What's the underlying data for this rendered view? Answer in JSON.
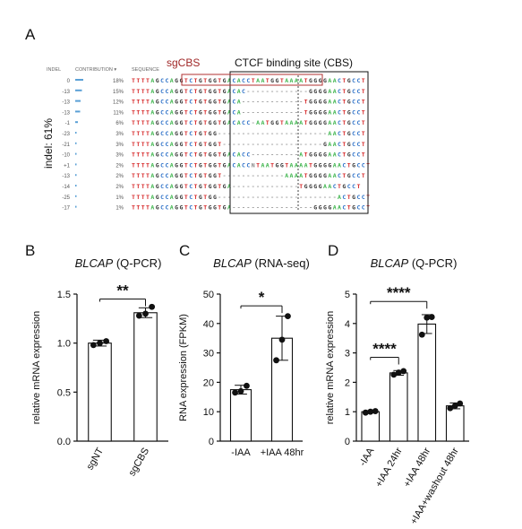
{
  "panel_a": {
    "letter": "A",
    "sgcbs_label": "sgCBS",
    "cbs_label": "CTCF binding site (CBS)",
    "header": {
      "indel": "INDEL",
      "contribution": "CONTRIBUTION ▾",
      "sequence": "SEQUENCE"
    },
    "indel_summary": "indel: 61%",
    "rows": [
      {
        "indel": "0",
        "contribution": "18%",
        "sequence": "TTTTAGCCAGGTCTGTGGTGACACCTAATGGTAAAATGGGGAACTGCCT"
      },
      {
        "indel": "-13",
        "contribution": "15%",
        "sequence": "TTTTAGCCAGGTCTGTGGTGACAC-------------GGGGAACTGCCT"
      },
      {
        "indel": "-13",
        "contribution": "12%",
        "sequence": "TTTTAGCCAGGTCTGTGGTGACA-------------TGGGGAACTGCCT"
      },
      {
        "indel": "-13",
        "contribution": "11%",
        "sequence": "TTTTAGCCAGGTCTGTGGTGACA-------------TGGGGAACTGCCT"
      },
      {
        "indel": "-1",
        "contribution": "6%",
        "sequence": "TTTTAGCCAGGTCTGTGGTGACACC-AATGGTAAAATGGGGAACTGCCT"
      },
      {
        "indel": "-23",
        "contribution": "3%",
        "sequence": "TTTTAGCCAGGTCTGTGG-----------------------AACTGCCT"
      },
      {
        "indel": "-21",
        "contribution": "3%",
        "sequence": "TTTTAGCCAGGTCTGTGGT---------------------GAACTGCCT"
      },
      {
        "indel": "-10",
        "contribution": "3%",
        "sequence": "TTTTAGCCAGGTCTGTGGTGACACC----------ATGGGGAACTGCCT"
      },
      {
        "indel": "+1",
        "contribution": "2%",
        "sequence": "TTTTAGCCAGGTCTGTGGTGACACCNTAATGGTAAAATGGGGAACTGCCT"
      },
      {
        "indel": "-13",
        "contribution": "2%",
        "sequence": "TTTTAGCCAGGTCTGTGGT-------------AAAATGGGGAACTGCCT"
      },
      {
        "indel": "-14",
        "contribution": "2%",
        "sequence": "TTTTAGCCAGGTCTGTGGTGA--------------TGGGGAACTGCCT"
      },
      {
        "indel": "-25",
        "contribution": "1%",
        "sequence": "TTTTAGCCAGGTCTGTGG-------------------------ACTGCCT"
      },
      {
        "indel": "-17",
        "contribution": "1%",
        "sequence": "TTTTAGCCAGGTCTGTGGTGA-----------------GGGGAACTGCCT"
      }
    ],
    "colors": {
      "A": "#3cb44b",
      "T": "#d62728",
      "G": "#333333",
      "C": "#2a6fc7",
      "N": "#888888",
      "dash": "#999999",
      "bar": "#5aa0d6",
      "box": "#111111",
      "sgbox": "#b03030"
    }
  },
  "panel_b": {
    "letter": "B",
    "title_gene": "BLCAP",
    "title_rest": " (Q-PCR)",
    "significance": "**"
  },
  "panel_c": {
    "letter": "C",
    "title_gene": "BLCAP",
    "title_rest": " (RNA-seq)",
    "significance": "*"
  },
  "panel_d": {
    "letter": "D",
    "title_gene": "BLCAP",
    "title_rest": " (Q-PCR)",
    "significance": [
      "****",
      "****"
    ]
  },
  "chart_data": [
    {
      "type": "bar",
      "panel": "B",
      "ylabel": "relative mRNA expression",
      "ylim": [
        0,
        1.5
      ],
      "yticks": [
        "0.0",
        "0.5",
        "1.0",
        "1.5"
      ],
      "categories": [
        "sgNT",
        "sgCBS"
      ],
      "values": [
        1.0,
        1.31
      ],
      "errors": [
        0.03,
        0.05
      ],
      "points": [
        [
          0.98,
          1.0,
          1.02
        ],
        [
          1.28,
          1.3,
          1.37
        ]
      ],
      "significance": {
        "pair": [
          0,
          1
        ],
        "label": "**"
      }
    },
    {
      "type": "bar",
      "panel": "C",
      "ylabel": "RNA expression (FPKM)",
      "ylim": [
        0,
        50
      ],
      "yticks": [
        "0",
        "10",
        "20",
        "30",
        "40",
        "50"
      ],
      "categories": [
        "-IAA",
        "+IAA 48hr"
      ],
      "values": [
        17.5,
        35
      ],
      "errors": [
        1.5,
        7.5
      ],
      "points": [
        [
          16.5,
          17.0,
          18.8
        ],
        [
          27.5,
          34.5,
          42.5
        ]
      ],
      "significance": {
        "pair": [
          0,
          1
        ],
        "label": "*"
      }
    },
    {
      "type": "bar",
      "panel": "D",
      "ylabel": "relative mRNA expression",
      "ylim": [
        0,
        5
      ],
      "yticks": [
        "0",
        "1",
        "2",
        "3",
        "4",
        "5"
      ],
      "categories": [
        "-IAA",
        "+IAA 24hr",
        "+IAA 48hr",
        "+IAA+washout 48hr"
      ],
      "values": [
        1.0,
        2.32,
        3.98,
        1.2
      ],
      "errors": [
        0.04,
        0.08,
        0.32,
        0.1
      ],
      "points": [
        [
          0.97,
          1.0,
          1.02
        ],
        [
          2.26,
          2.33,
          2.38
        ],
        [
          3.62,
          4.2,
          4.22
        ],
        [
          1.12,
          1.2,
          1.28
        ]
      ],
      "significance": [
        {
          "pair": [
            0,
            1
          ],
          "label": "****"
        },
        {
          "pair": [
            0,
            2
          ],
          "label": "****"
        }
      ]
    }
  ]
}
